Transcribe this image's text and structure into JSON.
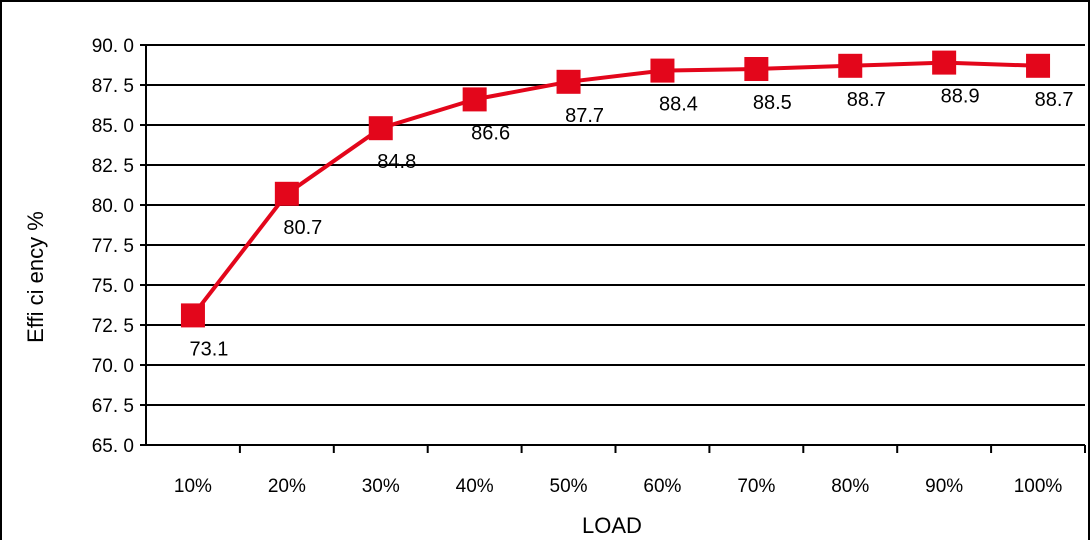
{
  "chart_data": {
    "type": "line",
    "title": "",
    "xlabel": "LOAD",
    "ylabel": "Effi ci ency %",
    "categories": [
      "10%",
      "20%",
      "30%",
      "40%",
      "50%",
      "60%",
      "70%",
      "80%",
      "90%",
      "100%"
    ],
    "y_tick_labels": [
      "90. 0",
      "87. 5",
      "85. 0",
      "82. 5",
      "80. 0",
      "77. 5",
      "75. 0",
      "72. 5",
      "70. 0",
      "67. 5",
      "65. 0"
    ],
    "ylim": [
      65.0,
      90.0
    ],
    "grid": true,
    "legend": "none",
    "series": [
      {
        "color": "#e3061b",
        "values": [
          73.1,
          80.7,
          84.8,
          86.6,
          87.7,
          88.4,
          88.5,
          88.7,
          88.9,
          88.7
        ],
        "data_labels": [
          "73.1",
          "80.7",
          "84.8",
          "86.6",
          "87.7",
          "88.4",
          "88.5",
          "88.7",
          "88.9",
          "88.7"
        ]
      }
    ]
  }
}
